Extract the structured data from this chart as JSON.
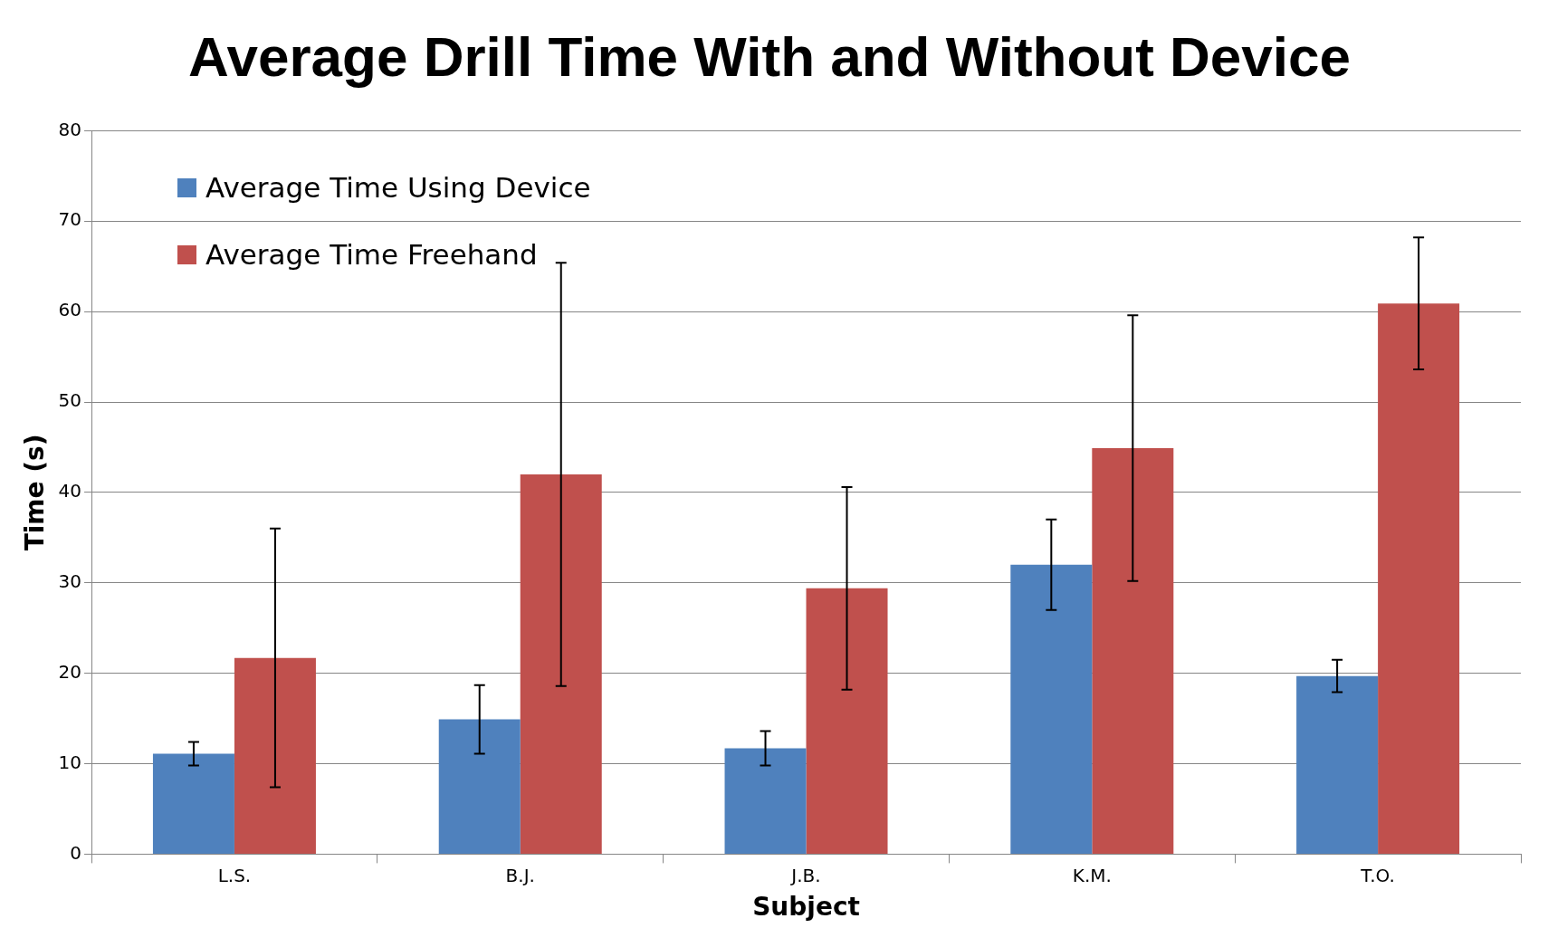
{
  "chart_data": {
    "type": "bar",
    "title": "Average Drill Time With and Without Device",
    "xlabel": "Subject",
    "ylabel": "Time (s)",
    "categories": [
      "L.S.",
      "B.J.",
      "J.B.",
      "K.M.",
      "T.O."
    ],
    "series": [
      {
        "name": "Average Time Using Device",
        "color": "#4f81bd",
        "values": [
          11.1,
          14.9,
          11.7,
          32,
          19.7
        ],
        "errors": [
          1.3,
          3.8,
          1.9,
          5,
          1.8
        ]
      },
      {
        "name": "Average Time Freehand",
        "color": "#c0504d",
        "values": [
          21.7,
          42,
          29.4,
          44.9,
          60.9
        ],
        "errors": [
          14.3,
          23.4,
          11.2,
          14.7,
          7.3
        ]
      }
    ],
    "ylim": [
      0,
      80
    ],
    "yticks": [
      0,
      10,
      20,
      30,
      40,
      50,
      60,
      70,
      80
    ],
    "grid": "y",
    "legend": "top left"
  }
}
